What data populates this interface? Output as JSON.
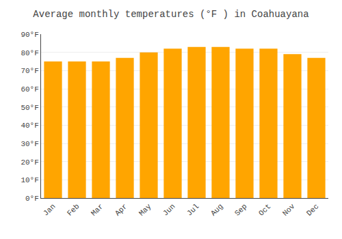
{
  "chart_data": {
    "type": "bar",
    "title": "Average monthly temperatures (°F ) in Coahuayana",
    "categories": [
      "Jan",
      "Feb",
      "Mar",
      "Apr",
      "May",
      "Jun",
      "Jul",
      "Aug",
      "Sep",
      "Oct",
      "Nov",
      "Dec"
    ],
    "values": [
      75,
      75,
      75,
      77,
      80,
      82,
      83,
      83,
      82,
      82,
      79,
      77
    ],
    "color": "#FFA500",
    "ylim": [
      0,
      90
    ],
    "yticks": [
      {
        "value": 0,
        "label": "0°F"
      },
      {
        "value": 10,
        "label": "10°F"
      },
      {
        "value": 20,
        "label": "20°F"
      },
      {
        "value": 30,
        "label": "30°F"
      },
      {
        "value": 40,
        "label": "40°F"
      },
      {
        "value": 50,
        "label": "50°F"
      },
      {
        "value": 60,
        "label": "60°F"
      },
      {
        "value": 70,
        "label": "70°F"
      },
      {
        "value": 80,
        "label": "80°F"
      },
      {
        "value": 90,
        "label": "90°F"
      }
    ],
    "grid": true
  }
}
